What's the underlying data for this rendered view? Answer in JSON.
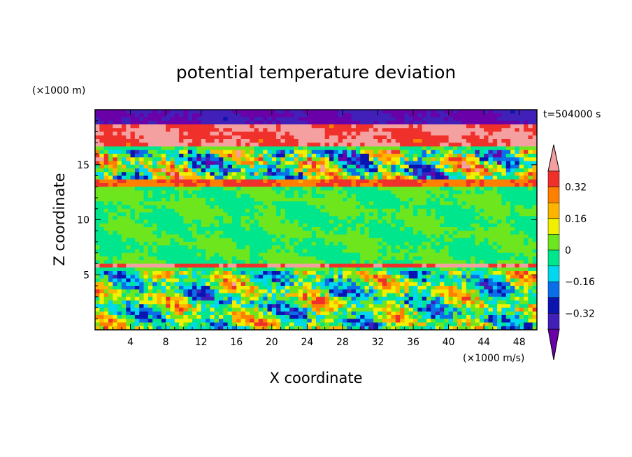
{
  "chart_data": {
    "type": "heatmap",
    "title": "potential temperature deviation",
    "xlabel": "X coordinate",
    "ylabel": "Z coordinate",
    "x_unit": "(×1000 m/s)",
    "y_unit": "(×1000 m)",
    "time_label": "t=504000 s",
    "xlim": [
      0,
      50
    ],
    "ylim": [
      0,
      20
    ],
    "x_ticks": [
      4,
      8,
      12,
      16,
      20,
      24,
      28,
      32,
      36,
      40,
      44,
      48
    ],
    "y_ticks": [
      5,
      10,
      15
    ],
    "colorbar": {
      "levels": [
        -0.4,
        -0.32,
        -0.24,
        -0.16,
        -0.08,
        0,
        0.08,
        0.16,
        0.24,
        0.32,
        0.4
      ],
      "tick_labels": [
        "0.32",
        "0.16",
        "0",
        "-0.16",
        "-0.32"
      ],
      "tick_values": [
        0.32,
        0.16,
        0,
        -0.16,
        -0.32
      ],
      "colors_low_to_high": [
        "#6a00a8",
        "#4020b8",
        "#0a14b0",
        "#0a6ee8",
        "#00d8f0",
        "#00e68c",
        "#6ee61e",
        "#f0f000",
        "#ffb400",
        "#ff8000",
        "#f0302a",
        "#f5a0a0"
      ],
      "extend": "both"
    },
    "layers": [
      {
        "z_range": [
          18.5,
          20
        ],
        "dominant_value": -0.4,
        "description": "purple top band"
      },
      {
        "z_range": [
          16.5,
          18.5
        ],
        "dominant_value": 0.4,
        "description": "pink band"
      },
      {
        "z_range": [
          13.5,
          16.5
        ],
        "dominant_value": 0.0,
        "description": "mixed turbulent layer"
      },
      {
        "z_range": [
          13.0,
          13.8
        ],
        "dominant_value": 0.32,
        "description": "red/orange thin band"
      },
      {
        "z_range": [
          6.0,
          13.0
        ],
        "dominant_value": 0.0,
        "description": "green neutral layer"
      },
      {
        "z_range": [
          5.5,
          6.0
        ],
        "dominant_value": 0.4,
        "description": "pink thin band"
      },
      {
        "z_range": [
          0,
          5.5
        ],
        "dominant_value": 0.0,
        "description": "turbulent mixed boundary layer"
      }
    ]
  }
}
